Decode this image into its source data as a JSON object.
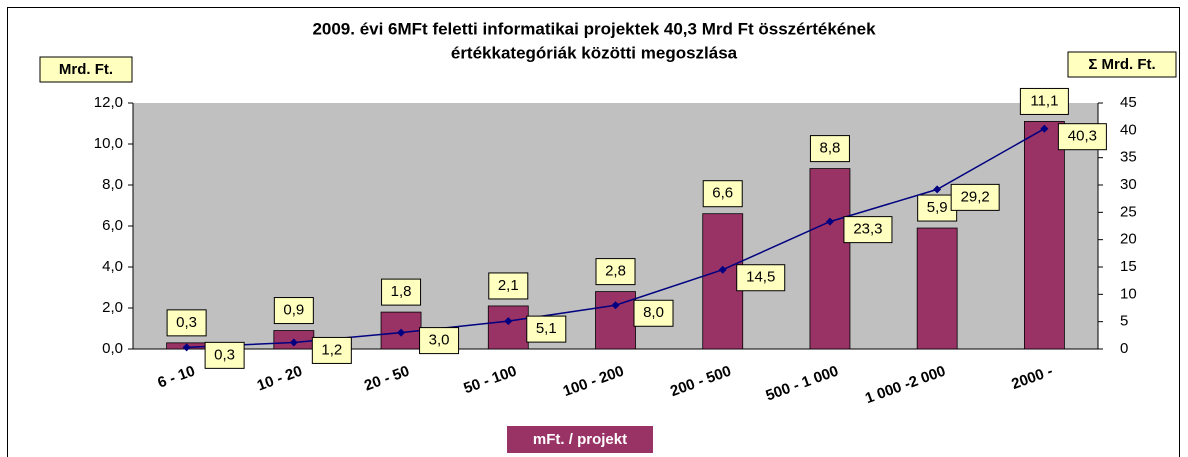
{
  "chart_data": {
    "type": "bar",
    "title": [
      "2009. évi 6MFt feletti informatikai projektek 40,3 Mrd Ft összértékének",
      "értékkategóriák közötti megoszlása"
    ],
    "ylabel": "Mrd. Ft.",
    "y2label": "Σ Mrd. Ft.",
    "xlabel": "mFt. / projekt",
    "categories": [
      "6 - 10",
      "10 - 20",
      "20 - 50",
      "50 - 100",
      "100 - 200",
      "200 - 500",
      "500 - 1 000",
      "1 000 -2 000",
      "2000 -"
    ],
    "series": [
      {
        "type": "bar",
        "color": "#993366",
        "values": [
          0.3,
          0.9,
          1.8,
          2.1,
          2.8,
          6.6,
          8.8,
          5.9,
          11.1
        ],
        "value_labels": [
          "0,3",
          "0,9",
          "1,8",
          "2,1",
          "2,8",
          "6,6",
          "8,8",
          "5,9",
          "11,1"
        ]
      },
      {
        "type": "line",
        "axis": "y2",
        "color": "#000080",
        "values": [
          0.3,
          1.2,
          3.0,
          5.1,
          8.0,
          14.5,
          23.3,
          29.2,
          40.3
        ],
        "value_labels": [
          "0,3",
          "1,2",
          "3,0",
          "5,1",
          "8,0",
          "14,5",
          "23,3",
          "29,2",
          "40,3"
        ]
      }
    ],
    "ylim": [
      0,
      12
    ],
    "yticks": [
      {
        "value": 0,
        "label": "0,0"
      },
      {
        "value": 2,
        "label": "2,0"
      },
      {
        "value": 4,
        "label": "4,0"
      },
      {
        "value": 6,
        "label": "6,0"
      },
      {
        "value": 8,
        "label": "8,0"
      },
      {
        "value": 10,
        "label": "10,0"
      },
      {
        "value": 12,
        "label": "12,0"
      }
    ],
    "y2lim": [
      0,
      45
    ],
    "y2ticks": [
      0,
      5,
      10,
      15,
      20,
      25,
      30,
      35,
      40,
      45
    ],
    "plot_background": "#c0c0c0"
  }
}
